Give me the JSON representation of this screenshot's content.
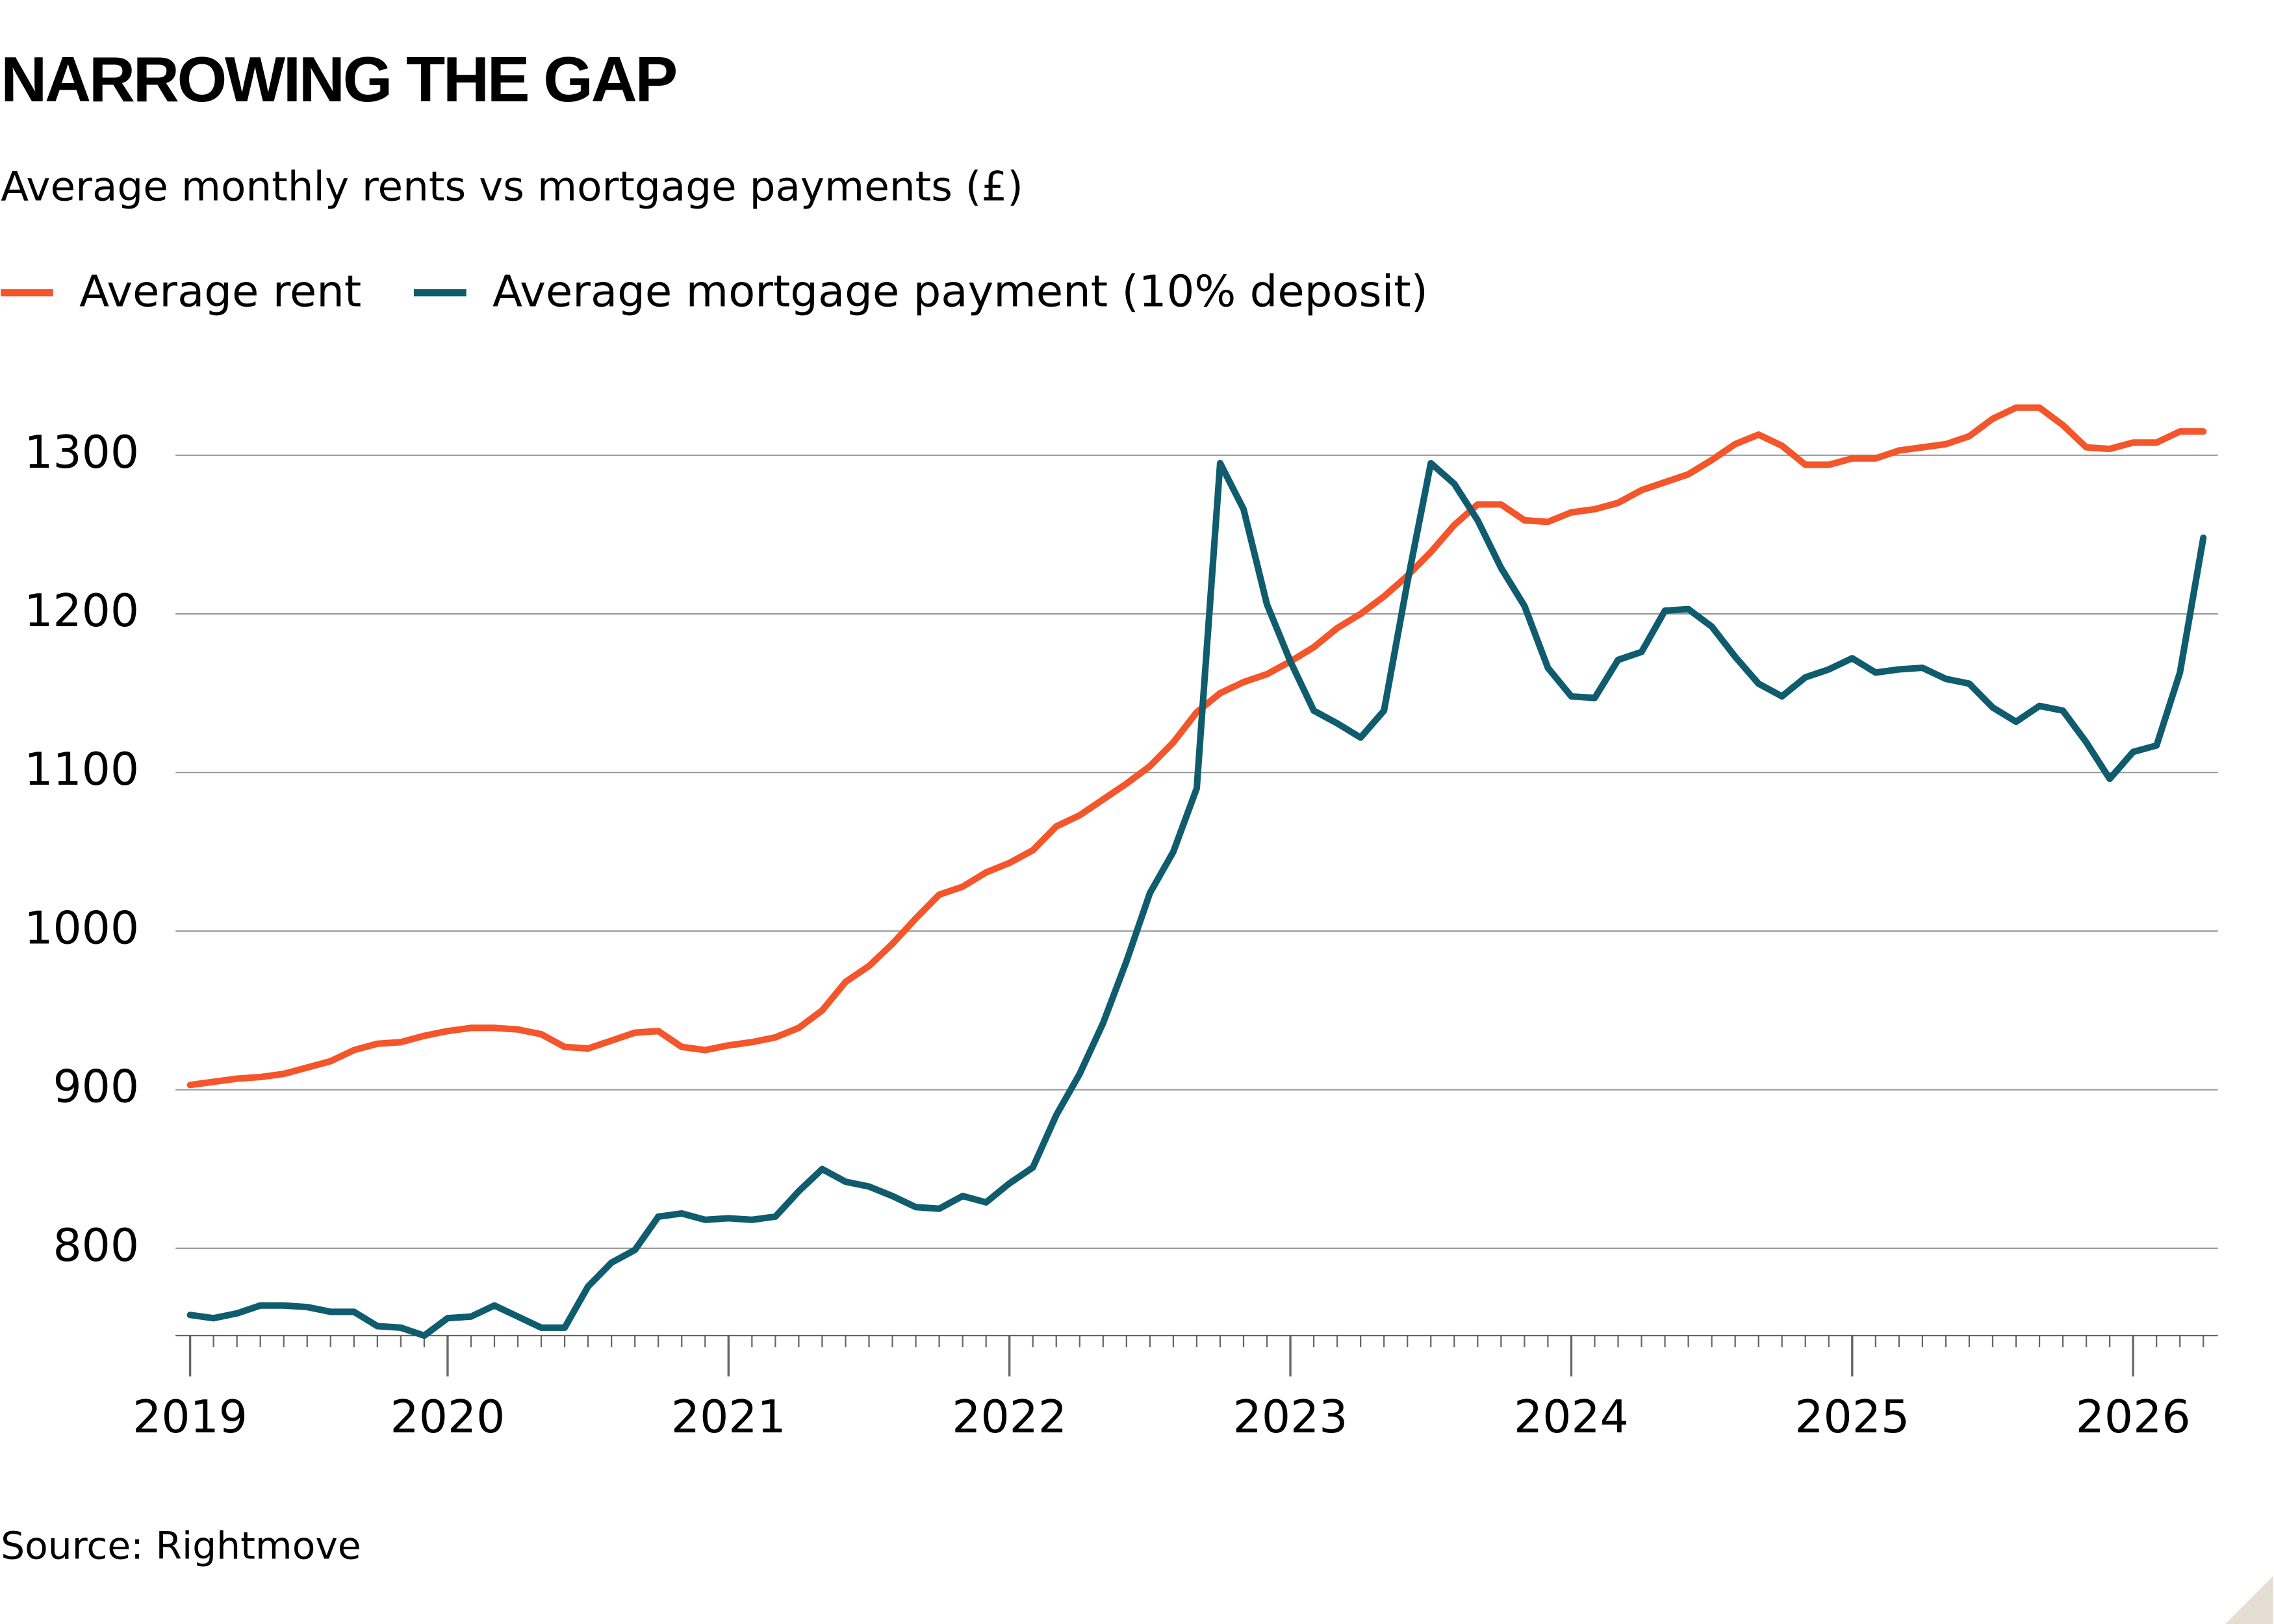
{
  "chart_data": {
    "type": "line",
    "title": "NARROWING THE GAP",
    "subtitle": "Average monthly rents vs mortgage payments (£)",
    "source": "Source: Rightmove",
    "categories": [
      "2019",
      null,
      null,
      null,
      null,
      null,
      null,
      null,
      null,
      null,
      null,
      "2020",
      null,
      null,
      null,
      null,
      null,
      null,
      null,
      null,
      null,
      null,
      null,
      "2021",
      null,
      null,
      null,
      null,
      null,
      null,
      null,
      null,
      null,
      null,
      null,
      "2022",
      null,
      null,
      null,
      null,
      null,
      null,
      null,
      null,
      null,
      null,
      null,
      "2023",
      null,
      null,
      null,
      null,
      null,
      null,
      null,
      null,
      null,
      null,
      null,
      "2024",
      null,
      null,
      null,
      null,
      null,
      null,
      null,
      null,
      null,
      null,
      null,
      "2025",
      null,
      null,
      null,
      null,
      null,
      null,
      null,
      null,
      null,
      null,
      null,
      "2026",
      null,
      null,
      null
    ],
    "series": [
      {
        "name": "Average rent",
        "color": "#f4552a",
        "values": [
          903,
          905,
          907,
          908,
          910,
          914,
          918,
          925,
          929,
          930,
          934,
          937,
          939,
          939,
          938,
          935,
          927,
          926,
          931,
          936,
          937,
          927,
          925,
          928,
          930,
          933,
          939,
          950,
          968,
          978,
          992,
          1008,
          1023,
          1028,
          1037,
          1043,
          1051,
          1066,
          1073,
          1083,
          1093,
          1104,
          1119,
          1138,
          1150,
          1157,
          1162,
          1170,
          1179,
          1191,
          1200,
          1211,
          1224,
          1239,
          1256,
          1269,
          1269,
          1259,
          1258,
          1264,
          1266,
          1270,
          1278,
          1283,
          1288,
          1297,
          1307,
          1313,
          1306,
          1294,
          1294,
          1298,
          1298,
          1303,
          1305,
          1307,
          1312,
          1323,
          1330,
          1330,
          1319,
          1305,
          1304,
          1308,
          1308,
          1315,
          1315
        ]
      },
      {
        "name": "Average mortgage payment (10% deposit)",
        "color": "#0f5c6e",
        "values": [
          758,
          756,
          759,
          764,
          764,
          763,
          760,
          760,
          751,
          750,
          745,
          756,
          757,
          764,
          757,
          750,
          750,
          776,
          791,
          799,
          820,
          822,
          818,
          819,
          818,
          820,
          836,
          850,
          842,
          839,
          833,
          826,
          825,
          833,
          829,
          841,
          851,
          884,
          910,
          942,
          981,
          1024,
          1050,
          1090,
          1295,
          1266,
          1206,
          1170,
          1139,
          1131,
          1122,
          1139,
          1220,
          1295,
          1282,
          1259,
          1229,
          1205,
          1166,
          1148,
          1147,
          1171,
          1176,
          1202,
          1203,
          1192,
          1173,
          1156,
          1148,
          1160,
          1165,
          1172,
          1163,
          1165,
          1166,
          1159,
          1156,
          1141,
          1132,
          1142,
          1139,
          1119,
          1096,
          1113,
          1117,
          1163,
          1248
        ]
      }
    ],
    "ylim": [
      745,
      1340
    ],
    "yticks": [
      800,
      900,
      1000,
      1100,
      1200,
      1300
    ],
    "grid": true,
    "legend": "top-left"
  }
}
